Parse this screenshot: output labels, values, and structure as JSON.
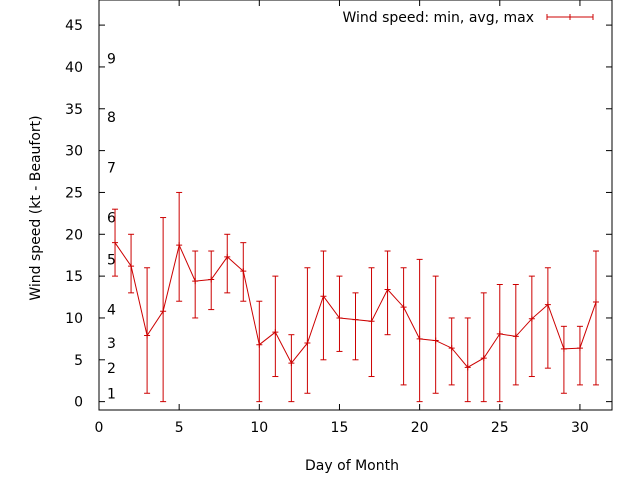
{
  "chart_data": {
    "type": "line",
    "xlabel": "Day of Month",
    "ylabel": "Wind speed (kt - Beaufort)",
    "xlim": [
      0,
      32
    ],
    "ylim": [
      -1,
      48
    ],
    "x_ticks": [
      0,
      5,
      10,
      15,
      20,
      25,
      30
    ],
    "y_ticks": [
      0,
      5,
      10,
      15,
      20,
      25,
      30,
      35,
      40,
      45
    ],
    "grid": false,
    "legend_position": "top-right",
    "beaufort_labels": [
      {
        "label": "1",
        "y": 1
      },
      {
        "label": "2",
        "y": 4
      },
      {
        "label": "3",
        "y": 7
      },
      {
        "label": "4",
        "y": 11
      },
      {
        "label": "5",
        "y": 17
      },
      {
        "label": "6",
        "y": 22
      },
      {
        "label": "7",
        "y": 28
      },
      {
        "label": "8",
        "y": 34
      },
      {
        "label": "9",
        "y": 41
      }
    ],
    "series": [
      {
        "name": "Wind speed: min, avg, max",
        "color": "#cc0000",
        "x": [
          1,
          2,
          3,
          4,
          5,
          6,
          7,
          8,
          9,
          10,
          11,
          12,
          13,
          14,
          15,
          16,
          17,
          18,
          19,
          20,
          21,
          22,
          23,
          24,
          25,
          26,
          27,
          28,
          29,
          30,
          31
        ],
        "avg": [
          19,
          16.2,
          7.9,
          10.8,
          18.7,
          14.4,
          14.6,
          17.3,
          15.6,
          6.8,
          8.3,
          4.6,
          7.0,
          12.6,
          10.0,
          9.8,
          9.6,
          13.4,
          11.3,
          7.5,
          7.3,
          6.4,
          4.1,
          5.2,
          8.1,
          7.8,
          9.9,
          11.6,
          6.3,
          6.4,
          11.9
        ],
        "min": [
          15,
          13,
          1,
          0,
          12,
          10,
          11,
          13,
          12,
          0,
          3,
          0,
          1,
          5,
          6,
          5,
          3,
          8,
          2,
          0,
          1,
          2,
          0,
          0,
          0,
          2,
          3,
          4,
          1,
          2,
          2
        ],
        "max": [
          23,
          20,
          16,
          22,
          25,
          18,
          18,
          20,
          19,
          12,
          15,
          8,
          16,
          18,
          15,
          13,
          16,
          18,
          16,
          17,
          15,
          10,
          10,
          13,
          14,
          14,
          15,
          16,
          9,
          9,
          18
        ]
      }
    ]
  }
}
